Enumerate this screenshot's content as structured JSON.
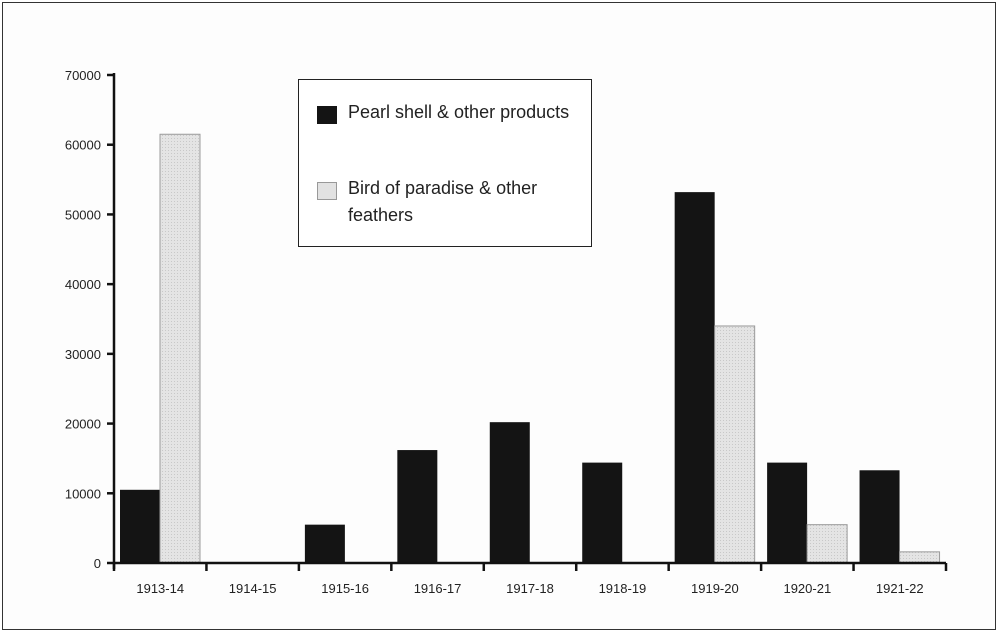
{
  "chart_data": {
    "type": "bar",
    "categories": [
      "1913-14",
      "1914-15",
      "1915-16",
      "1916-17",
      "1917-18",
      "1918-19",
      "1919-20",
      "1920-21",
      "1921-22"
    ],
    "series": [
      {
        "name": "Pearl shell & other products",
        "values": [
          10500,
          0,
          5500,
          16200,
          20200,
          14400,
          53200,
          14400,
          13300
        ],
        "color": "#141414"
      },
      {
        "name": "Bird of paradise & other feathers",
        "values": [
          61500,
          0,
          0,
          0,
          0,
          0,
          34000,
          5500,
          1600
        ],
        "color": "#e2e2e2"
      }
    ],
    "ylim": [
      0,
      70000
    ],
    "yticks": [
      "0",
      "10000",
      "20000",
      "30000",
      "40000",
      "50000",
      "60000",
      "70000"
    ],
    "title": "",
    "xlabel": "",
    "ylabel": "",
    "legend_position": "top-center",
    "grid": false
  }
}
